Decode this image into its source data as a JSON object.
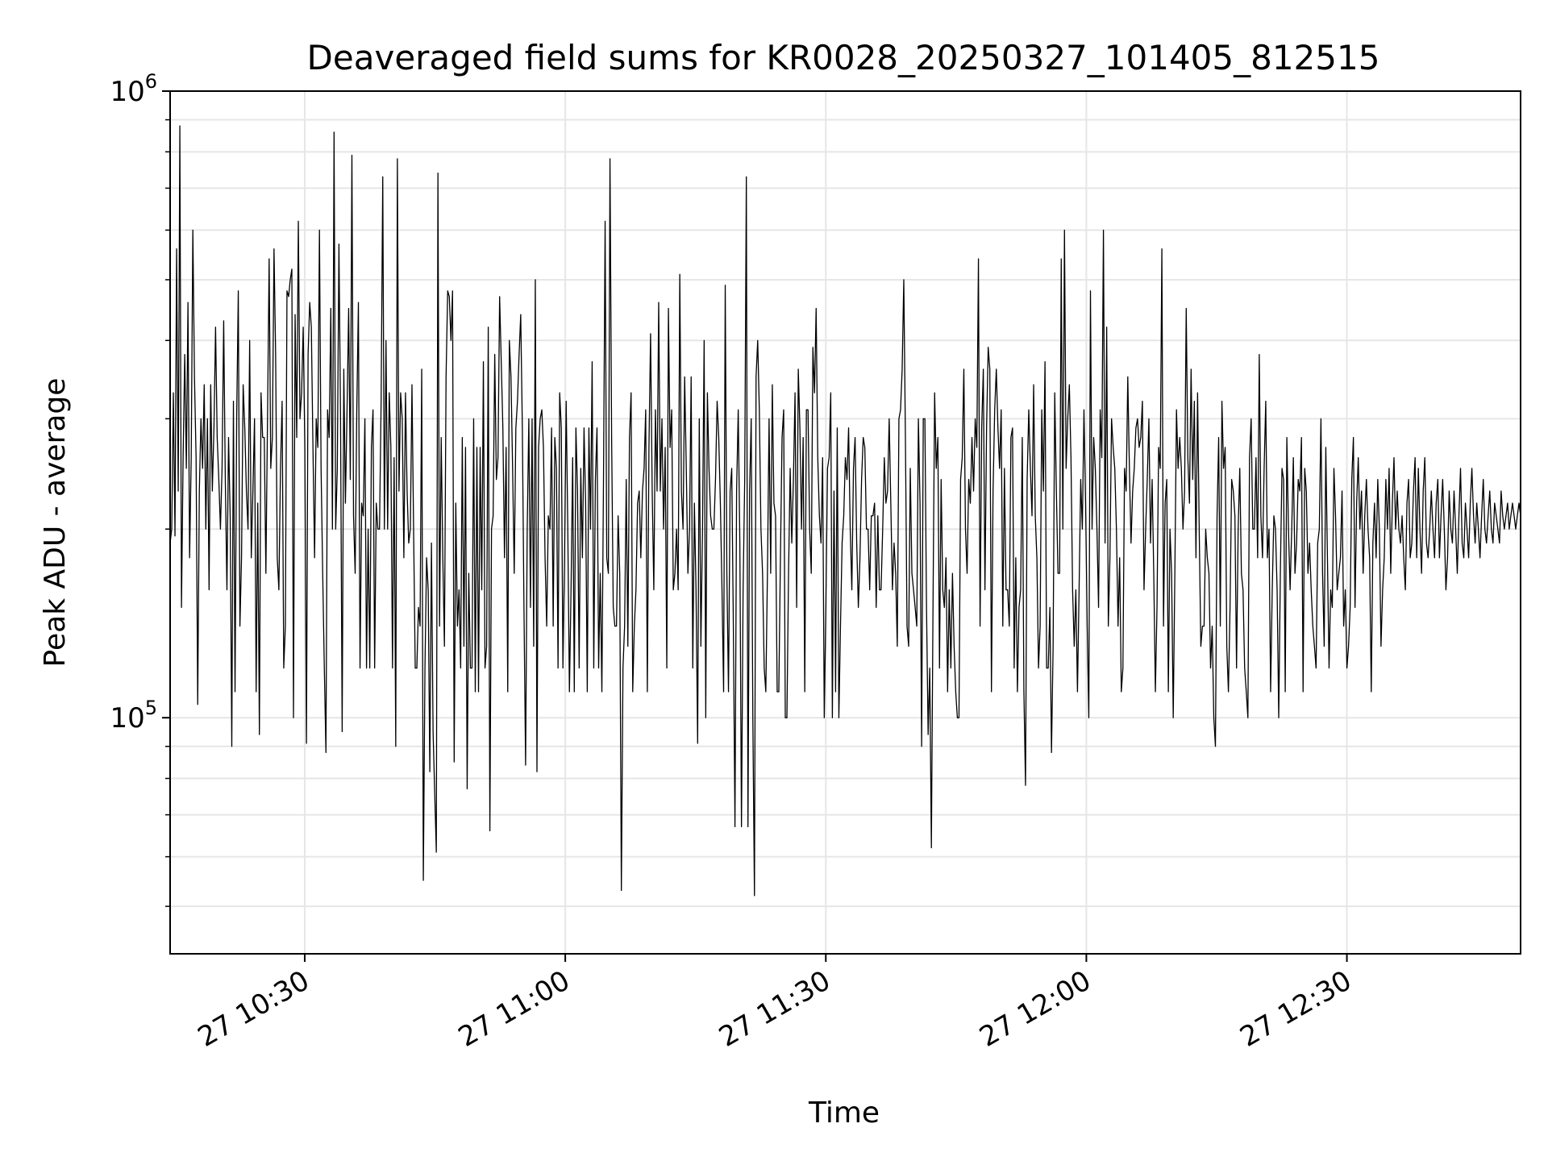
{
  "chart_data": {
    "type": "line",
    "title": "Deaveraged field sums for KR0028_20250327_101405_812515",
    "xlabel": "Time",
    "ylabel": "Peak ADU - average",
    "yscale": "log",
    "ylim": [
      42000,
      1000000
    ],
    "xlim": [
      "2025-03-27 10:14:30",
      "2025-03-27 12:50:00"
    ],
    "grid": true,
    "line_color": "#000000",
    "x_ticks": [
      {
        "value": "2025-03-27 10:30:00",
        "label": "27 10:30"
      },
      {
        "value": "2025-03-27 11:00:00",
        "label": "27 11:00"
      },
      {
        "value": "2025-03-27 11:30:00",
        "label": "27 11:30"
      },
      {
        "value": "2025-03-27 12:00:00",
        "label": "27 12:00"
      },
      {
        "value": "2025-03-27 12:30:00",
        "label": "27 12:30"
      }
    ],
    "y_ticks": [
      {
        "value": 100000,
        "base": "10",
        "exp": "5"
      },
      {
        "value": 1000000,
        "base": "10",
        "exp": "6"
      }
    ],
    "series": [
      {
        "x_start": "2025-03-27 10:14:30",
        "x_end": "2025-03-27 12:50:00",
        "values": [
          190000,
          200000,
          330000,
          195000,
          560000,
          230000,
          880000,
          150000,
          260000,
          380000,
          250000,
          460000,
          180000,
          260000,
          600000,
          350000,
          260000,
          105000,
          230000,
          300000,
          250000,
          340000,
          200000,
          300000,
          160000,
          340000,
          230000,
          290000,
          420000,
          280000,
          240000,
          200000,
          250000,
          430000,
          240000,
          160000,
          280000,
          210000,
          90000,
          320000,
          110000,
          300000,
          480000,
          140000,
          180000,
          340000,
          290000,
          230000,
          200000,
          400000,
          180000,
          230000,
          300000,
          110000,
          220000,
          94000,
          330000,
          280000,
          280000,
          170000,
          300000,
          540000,
          250000,
          280000,
          560000,
          380000,
          180000,
          160000,
          250000,
          320000,
          120000,
          140000,
          480000,
          470000,
          500000,
          520000,
          100000,
          440000,
          280000,
          620000,
          300000,
          330000,
          420000,
          270000,
          91000,
          380000,
          460000,
          420000,
          270000,
          180000,
          300000,
          270000,
          600000,
          250000,
          170000,
          120000,
          88000,
          310000,
          280000,
          450000,
          200000,
          860000,
          200000,
          250000,
          570000,
          300000,
          95000,
          360000,
          220000,
          310000,
          450000,
          240000,
          790000,
          210000,
          170000,
          310000,
          460000,
          120000,
          220000,
          210000,
          300000,
          120000,
          200000,
          120000,
          270000,
          310000,
          120000,
          220000,
          200000,
          200000,
          320000,
          730000,
          200000,
          400000,
          200000,
          330000,
          270000,
          120000,
          260000,
          90000,
          780000,
          230000,
          330000,
          300000,
          180000,
          330000,
          230000,
          190000,
          200000,
          340000,
          200000,
          120000,
          120000,
          150000,
          140000,
          360000,
          55000,
          120000,
          180000,
          160000,
          82000,
          190000,
          95000,
          76000,
          61000,
          740000,
          140000,
          280000,
          180000,
          130000,
          350000,
          480000,
          470000,
          400000,
          480000,
          85000,
          220000,
          140000,
          160000,
          120000,
          280000,
          130000,
          270000,
          77000,
          170000,
          120000,
          120000,
          300000,
          110000,
          270000,
          110000,
          270000,
          160000,
          370000,
          120000,
          130000,
          420000,
          66000,
          200000,
          210000,
          380000,
          240000,
          260000,
          470000,
          370000,
          290000,
          180000,
          270000,
          110000,
          400000,
          350000,
          250000,
          170000,
          290000,
          320000,
          380000,
          440000,
          290000,
          150000,
          84000,
          200000,
          300000,
          150000,
          300000,
          130000,
          500000,
          82000,
          270000,
          300000,
          310000,
          270000,
          180000,
          140000,
          210000,
          200000,
          290000,
          140000,
          280000,
          250000,
          120000,
          330000,
          290000,
          120000,
          180000,
          320000,
          200000,
          110000,
          160000,
          260000,
          110000,
          290000,
          230000,
          120000,
          250000,
          180000,
          290000,
          220000,
          110000,
          290000,
          200000,
          370000,
          120000,
          240000,
          290000,
          120000,
          170000,
          110000,
          240000,
          620000,
          180000,
          170000,
          780000,
          280000,
          150000,
          140000,
          140000,
          210000,
          170000,
          53000,
          120000,
          140000,
          240000,
          130000,
          280000,
          330000,
          110000,
          140000,
          160000,
          220000,
          230000,
          180000,
          230000,
          250000,
          310000,
          110000,
          270000,
          410000,
          230000,
          160000,
          310000,
          230000,
          460000,
          230000,
          300000,
          200000,
          270000,
          120000,
          450000,
          270000,
          310000,
          160000,
          170000,
          200000,
          160000,
          510000,
          230000,
          200000,
          350000,
          250000,
          170000,
          200000,
          350000,
          120000,
          220000,
          160000,
          91000,
          300000,
          130000,
          200000,
          400000,
          100000,
          330000,
          250000,
          210000,
          200000,
          200000,
          240000,
          320000,
          280000,
          220000,
          160000,
          110000,
          490000,
          170000,
          110000,
          230000,
          250000,
          140000,
          67000,
          230000,
          310000,
          190000,
          67000,
          160000,
          240000,
          730000,
          67000,
          230000,
          300000,
          100000,
          52000,
          350000,
          400000,
          310000,
          200000,
          170000,
          120000,
          110000,
          170000,
          300000,
          170000,
          340000,
          220000,
          210000,
          110000,
          110000,
          180000,
          280000,
          310000,
          100000,
          100000,
          170000,
          250000,
          190000,
          240000,
          330000,
          150000,
          360000,
          290000,
          200000,
          280000,
          110000,
          310000,
          310000,
          200000,
          170000,
          390000,
          330000,
          450000,
          260000,
          210000,
          190000,
          260000,
          100000,
          150000,
          250000,
          260000,
          330000,
          100000,
          230000,
          110000,
          290000,
          100000,
          140000,
          190000,
          210000,
          260000,
          240000,
          290000,
          200000,
          160000,
          250000,
          280000,
          190000,
          150000,
          180000,
          240000,
          280000,
          270000,
          200000,
          200000,
          160000,
          210000,
          210000,
          220000,
          150000,
          210000,
          160000,
          160000,
          200000,
          260000,
          220000,
          230000,
          300000,
          220000,
          160000,
          190000,
          170000,
          130000,
          300000,
          310000,
          360000,
          500000,
          280000,
          140000,
          130000,
          250000,
          170000,
          160000,
          150000,
          140000,
          300000,
          220000,
          90000,
          300000,
          300000,
          150000,
          94000,
          120000,
          62000,
          150000,
          330000,
          250000,
          280000,
          120000,
          240000,
          160000,
          150000,
          180000,
          110000,
          160000,
          120000,
          170000,
          130000,
          110000,
          100000,
          100000,
          240000,
          260000,
          360000,
          200000,
          170000,
          240000,
          220000,
          280000,
          230000,
          300000,
          270000,
          540000,
          140000,
          290000,
          360000,
          160000,
          290000,
          390000,
          360000,
          110000,
          230000,
          310000,
          360000,
          290000,
          250000,
          310000,
          140000,
          250000,
          160000,
          160000,
          140000,
          280000,
          290000,
          120000,
          180000,
          110000,
          150000,
          160000,
          280000,
          110000,
          78000,
          240000,
          310000,
          250000,
          210000,
          340000,
          210000,
          180000,
          120000,
          140000,
          310000,
          230000,
          370000,
          120000,
          120000,
          150000,
          88000,
          130000,
          330000,
          230000,
          170000,
          170000,
          540000,
          200000,
          600000,
          250000,
          300000,
          340000,
          260000,
          160000,
          130000,
          160000,
          110000,
          160000,
          240000,
          200000,
          310000,
          220000,
          140000,
          100000,
          480000,
          200000,
          280000,
          250000,
          200000,
          150000,
          310000,
          260000,
          600000,
          190000,
          420000,
          140000,
          180000,
          300000,
          270000,
          250000,
          200000,
          140000,
          180000,
          110000,
          120000,
          250000,
          230000,
          350000,
          250000,
          190000,
          230000,
          250000,
          290000,
          300000,
          270000,
          280000,
          320000,
          160000,
          200000,
          240000,
          300000,
          190000,
          240000,
          170000,
          110000,
          150000,
          270000,
          250000,
          560000,
          140000,
          220000,
          240000,
          110000,
          200000,
          170000,
          100000,
          170000,
          310000,
          250000,
          280000,
          250000,
          200000,
          230000,
          450000,
          260000,
          220000,
          360000,
          240000,
          320000,
          180000,
          330000,
          200000,
          130000,
          140000,
          140000,
          200000,
          180000,
          170000,
          120000,
          140000,
          100000,
          90000,
          210000,
          280000,
          140000,
          320000,
          250000,
          270000,
          130000,
          110000,
          150000,
          240000,
          230000,
          210000,
          120000,
          200000,
          250000,
          170000,
          160000,
          120000,
          110000,
          100000,
          260000,
          300000,
          200000,
          200000,
          260000,
          180000,
          380000,
          210000,
          180000,
          250000,
          320000,
          180000,
          200000,
          110000,
          160000,
          210000,
          200000,
          160000,
          100000,
          170000,
          250000,
          240000,
          110000,
          280000,
          200000,
          160000,
          200000,
          260000,
          170000,
          190000,
          240000,
          230000,
          280000,
          110000,
          250000,
          230000,
          170000,
          190000,
          160000,
          140000,
          130000,
          120000,
          190000,
          200000,
          300000,
          170000,
          130000,
          270000,
          180000,
          120000,
          160000,
          150000,
          250000,
          210000,
          160000,
          170000,
          180000,
          230000,
          140000,
          160000,
          120000,
          130000,
          150000,
          240000,
          280000,
          150000,
          220000,
          260000,
          200000,
          230000,
          170000,
          210000,
          240000,
          200000,
          180000,
          110000,
          190000,
          220000,
          180000,
          240000,
          200000,
          130000,
          160000,
          180000,
          240000,
          200000,
          250000,
          170000,
          220000,
          260000,
          200000,
          230000,
          200000,
          190000,
          210000,
          180000,
          160000,
          220000,
          240000,
          180000,
          190000,
          230000,
          260000,
          180000,
          250000,
          200000,
          170000,
          230000,
          260000,
          190000,
          180000,
          200000,
          230000,
          200000,
          180000,
          220000,
          240000,
          180000,
          210000,
          240000,
          200000,
          160000,
          180000,
          230000,
          200000,
          190000,
          230000,
          200000,
          170000,
          210000,
          250000,
          190000,
          180000,
          220000,
          200000,
          180000,
          220000,
          250000,
          210000,
          190000,
          220000,
          200000,
          180000,
          210000,
          240000,
          200000,
          190000,
          210000,
          230000,
          200000,
          190000,
          220000,
          210000,
          200000,
          190000,
          230000,
          210000,
          200000,
          210000,
          220000,
          200000,
          210000,
          220000,
          210000,
          200000,
          210000,
          220000,
          210000
        ]
      }
    ]
  }
}
